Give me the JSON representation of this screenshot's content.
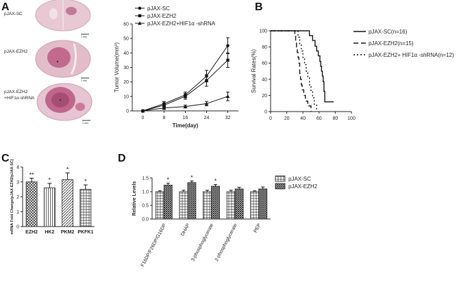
{
  "panels": {
    "a": "A",
    "b": "B",
    "c": "C",
    "d": "D"
  },
  "brain_images": [
    {
      "label": "pJAX-SC",
      "scale": "1 mm"
    },
    {
      "label": "pJAX-EZH2",
      "scale": "1 mm"
    },
    {
      "label": "pJAX-EZH2\n+HIF1α-shRNA",
      "scale": "1 mm"
    }
  ],
  "chart_data": [
    {
      "id": "tumor",
      "type": "line",
      "x": [
        0,
        8,
        16,
        24,
        32
      ],
      "xlabel": "Time(day)",
      "ylabel": "Tumor Volume(mm³)",
      "ylim": [
        0,
        60
      ],
      "yticks": [
        0,
        10,
        20,
        30,
        40,
        50,
        60
      ],
      "xticks": [
        0,
        8,
        16,
        24,
        32
      ],
      "series": [
        {
          "name": "pJAX-SC",
          "marker": "circle",
          "values": [
            0,
            5,
            11,
            24,
            45
          ],
          "err": [
            0,
            1.5,
            2,
            4,
            5.5
          ]
        },
        {
          "name": "pJAX-EZH2",
          "marker": "square",
          "values": [
            0,
            4,
            10,
            21,
            35
          ],
          "err": [
            0,
            1.5,
            2,
            4,
            5
          ]
        },
        {
          "name": "pJAX-EZH2+HIF1α -shRNA",
          "marker": "triangle",
          "values": [
            0,
            2,
            3,
            5,
            10
          ],
          "err": [
            0,
            1,
            1,
            1.5,
            3
          ]
        }
      ]
    },
    {
      "id": "survival",
      "type": "line",
      "ylabel": "Survival Rates(%)",
      "xlim": [
        0,
        100
      ],
      "ylim": [
        0,
        100
      ],
      "xticks": [
        0,
        20,
        40,
        60,
        80,
        100
      ],
      "yticks": [
        0,
        20,
        40,
        60,
        80,
        100
      ],
      "series": [
        {
          "name": "pJAX-SC(n=16)",
          "dash": "",
          "steps": [
            [
              0,
              100
            ],
            [
              45,
              100
            ],
            [
              48,
              94
            ],
            [
              52,
              88
            ],
            [
              55,
              81
            ],
            [
              57,
              75
            ],
            [
              59,
              69
            ],
            [
              61,
              62
            ],
            [
              62,
              56
            ],
            [
              63,
              50
            ],
            [
              64,
              44
            ],
            [
              65,
              37
            ],
            [
              66,
              25
            ],
            [
              67,
              12
            ],
            [
              76,
              12
            ],
            [
              78,
              12
            ]
          ]
        },
        {
          "name": "pJAX-EZH2(n=15)",
          "dash": "7,4",
          "steps": [
            [
              0,
              100
            ],
            [
              28,
              100
            ],
            [
              30,
              93
            ],
            [
              31,
              87
            ],
            [
              32,
              80
            ],
            [
              33,
              73
            ],
            [
              34,
              67
            ],
            [
              35,
              60
            ],
            [
              36,
              47
            ],
            [
              37,
              40
            ],
            [
              38,
              33
            ],
            [
              39,
              27
            ],
            [
              41,
              20
            ],
            [
              43,
              13
            ],
            [
              46,
              7
            ],
            [
              50,
              0
            ]
          ]
        },
        {
          "name": "pJAX-EZH2+ HIF1α -shRNA(n=12)",
          "dash": "2,3",
          "steps": [
            [
              0,
              100
            ],
            [
              32,
              100
            ],
            [
              34,
              92
            ],
            [
              36,
              83
            ],
            [
              38,
              75
            ],
            [
              40,
              67
            ],
            [
              42,
              58
            ],
            [
              44,
              50
            ],
            [
              46,
              42
            ],
            [
              48,
              33
            ],
            [
              50,
              25
            ],
            [
              52,
              17
            ],
            [
              54,
              8
            ],
            [
              57,
              0
            ]
          ]
        }
      ]
    },
    {
      "id": "mrna",
      "type": "bar",
      "categories": [
        "EZH2",
        "HK2",
        "PKM2",
        "PKFK1"
      ],
      "values": [
        3.0,
        2.6,
        3.15,
        2.5
      ],
      "err": [
        0.25,
        0.3,
        0.45,
        0.3
      ],
      "annotations": [
        "**",
        "*",
        "*",
        "*"
      ],
      "ylabel": "mRNA Fold Change(pJAX-EZH2/pJAX-SC)",
      "ylim": [
        0,
        4
      ],
      "yticks": [
        0,
        1,
        2,
        3,
        4
      ]
    },
    {
      "id": "metab",
      "type": "bar",
      "categories": [
        "F16DP/F26DP/G16DP",
        "DHAP",
        "3-phosphoglycerate",
        "2-phosphoglycerate",
        "PEP"
      ],
      "series": [
        {
          "name": "pJAX-SC",
          "values": [
            1.0,
            1.0,
            1.0,
            1.0,
            1.0
          ],
          "err": [
            0.03,
            0.05,
            0.05,
            0.05,
            0.03
          ]
        },
        {
          "name": "pJAX-EZH2",
          "values": [
            1.24,
            1.33,
            1.2,
            1.1,
            1.1
          ],
          "err": [
            0.07,
            0.06,
            0.06,
            0.06,
            0.07
          ]
        }
      ],
      "annotations": [
        "*",
        "*",
        "*",
        "",
        ""
      ],
      "ylabel": "Relative Levels",
      "ylim": [
        0,
        1.5
      ],
      "yticks": [
        0.0,
        0.5,
        1.0,
        1.5
      ]
    }
  ]
}
